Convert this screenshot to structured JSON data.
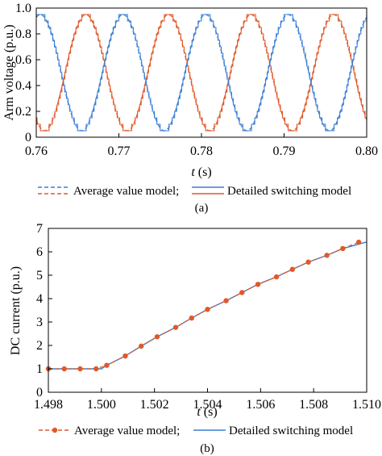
{
  "colors": {
    "blue": "#3b7fd4",
    "orange": "#e0592a",
    "axis": "#000000"
  },
  "chart_data": [
    {
      "type": "line",
      "caption": "(a)",
      "xlabel_var": "t",
      "xlabel_unit": " (s)",
      "ylabel": "Arm voltage (p.u.)",
      "xlim": [
        0.76,
        0.8
      ],
      "ylim": [
        0.0,
        1.0
      ],
      "xticks": [
        0.76,
        0.77,
        0.78,
        0.79,
        0.8
      ],
      "xtick_labels": [
        "0.76",
        "0.77",
        "0.78",
        "0.79",
        "0.80"
      ],
      "yticks": [
        0.0,
        0.2,
        0.4,
        0.6,
        0.8,
        1.0
      ],
      "ytick_labels": [
        "0",
        "0.2",
        "0.4",
        "0.6",
        "0.8",
        "1.0"
      ],
      "grid": false,
      "waveform": {
        "offset": 0.5,
        "amplitude": 0.45,
        "frequency_hz": 100,
        "upper_peak_t": 0.766,
        "lower_peak_t": 0.7655,
        "step_level": 0.05
      },
      "legend": [
        {
          "label": "Average value model;",
          "color": "#3b7fd4",
          "color2": "#e0592a",
          "style": "dashed"
        },
        {
          "label": "Detailed switching model",
          "color": "#3b7fd4",
          "color2": "#e0592a",
          "style": "solid"
        }
      ]
    },
    {
      "type": "line",
      "caption": "(b)",
      "xlabel_var": "t",
      "xlabel_unit": " (s)",
      "ylabel": "DC current (p.u.)",
      "xlim": [
        1.498,
        1.51
      ],
      "ylim": [
        0,
        7
      ],
      "xticks": [
        1.498,
        1.5,
        1.502,
        1.504,
        1.506,
        1.508,
        1.51
      ],
      "xtick_labels": [
        "1.498",
        "1.500",
        "1.502",
        "1.504",
        "1.506",
        "1.508",
        "1.510"
      ],
      "yticks": [
        0,
        1,
        2,
        3,
        4,
        5,
        6,
        7
      ],
      "ytick_labels": [
        "0",
        "1",
        "2",
        "3",
        "4",
        "5",
        "6",
        "7"
      ],
      "grid": false,
      "series": [
        {
          "name": "Average value model;",
          "color": "#e0592a",
          "style": "dashed-markers",
          "x": [
            1.498,
            1.4986,
            1.4992,
            1.4998,
            1.5002,
            1.5009,
            1.5015,
            1.5021,
            1.5028,
            1.5034,
            1.504,
            1.5047,
            1.5053,
            1.5059,
            1.5066,
            1.5072,
            1.5078,
            1.5085,
            1.5091,
            1.5097
          ],
          "y": [
            1.0,
            1.0,
            1.0,
            1.0,
            1.15,
            1.55,
            1.97,
            2.37,
            2.77,
            3.17,
            3.54,
            3.91,
            4.26,
            4.61,
            4.93,
            5.25,
            5.56,
            5.85,
            6.14,
            6.41
          ]
        },
        {
          "name": "Detailed switching model",
          "color": "#3b7fd4",
          "style": "solid",
          "x": [
            1.498,
            1.5,
            1.5002,
            1.5009,
            1.5015,
            1.5021,
            1.5028,
            1.5034,
            1.504,
            1.5047,
            1.5053,
            1.5059,
            1.5066,
            1.5072,
            1.5078,
            1.5085,
            1.5091,
            1.51
          ],
          "y": [
            1.0,
            1.0,
            1.15,
            1.55,
            1.97,
            2.37,
            2.77,
            3.17,
            3.54,
            3.91,
            4.26,
            4.61,
            4.93,
            5.25,
            5.56,
            5.85,
            6.14,
            6.42
          ]
        }
      ],
      "legend": [
        {
          "label": "Average value model;",
          "color": "#e0592a",
          "style": "dashed-marker"
        },
        {
          "label": "Detailed switching model",
          "color": "#3b7fd4",
          "style": "solid"
        }
      ]
    }
  ]
}
